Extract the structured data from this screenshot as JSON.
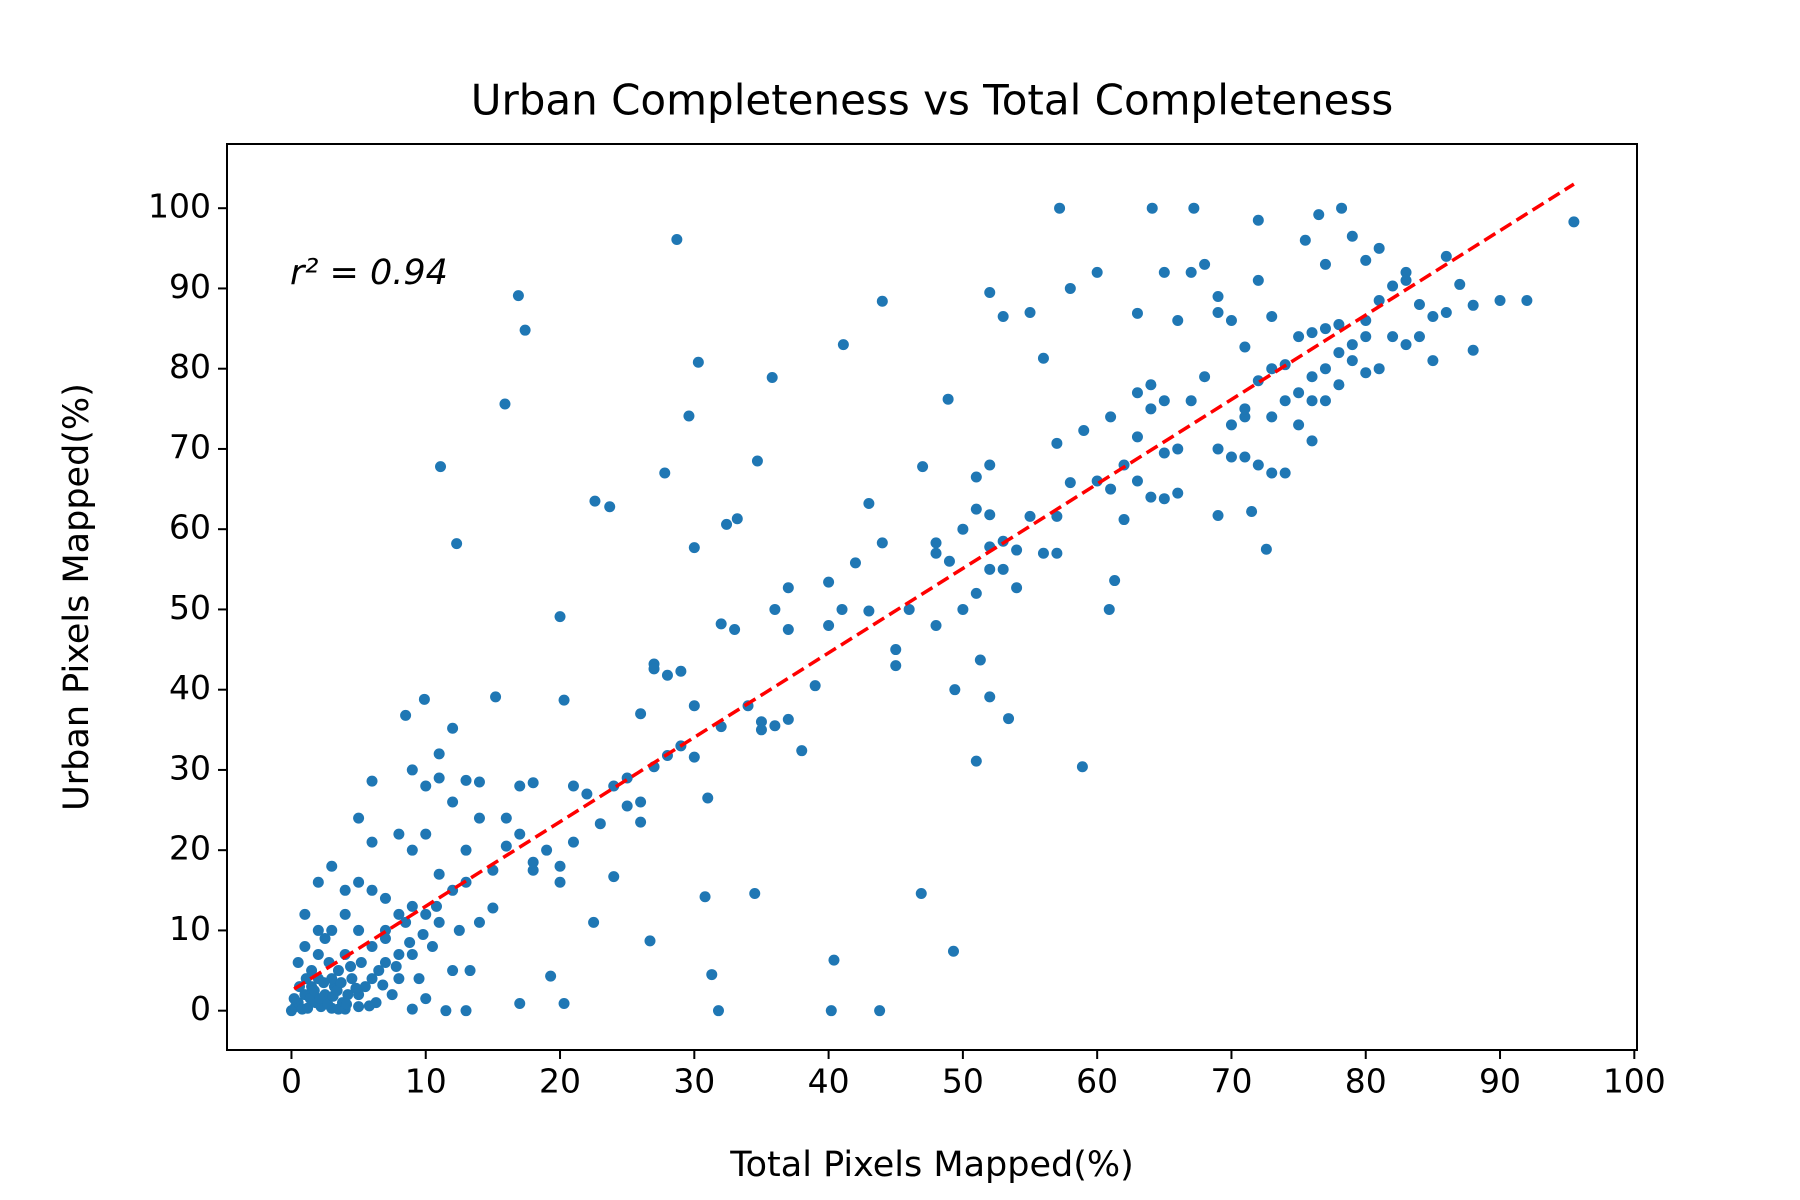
{
  "chart_data": {
    "type": "scatter",
    "title": "Urban Completeness vs Total Completeness",
    "x_label": "Total Pixels Mapped(%)",
    "y_label": "Urban Pixels Mapped(%)",
    "annotation": "r² = 0.94",
    "color": "#1f77b4",
    "xlim": [
      -4.8,
      100.2
    ],
    "ylim": [
      -4.9,
      108
    ],
    "xticks": [
      0,
      10,
      20,
      30,
      40,
      50,
      60,
      70,
      80,
      90,
      100
    ],
    "yticks": [
      0,
      10,
      20,
      30,
      40,
      50,
      60,
      70,
      80,
      90,
      100
    ],
    "trend_line": {
      "color": "#ff0000",
      "x": [
        0.2,
        95.5
      ],
      "values": [
        2.7,
        103.0
      ]
    },
    "x": [
      67.2,
      64.1,
      57.2,
      78.2,
      28.7,
      95.5,
      16.9,
      17.4,
      44,
      15.9,
      11.1,
      12.3,
      30.3,
      29.6,
      35.8,
      41.1,
      48.9,
      27.8,
      34.7,
      22.6,
      23.7,
      30,
      32.4,
      33.2,
      20,
      58.9,
      49.3,
      46.9,
      40.4,
      40.2,
      43.8,
      31.8,
      31.3,
      26.7,
      22.5,
      20.3,
      19.3,
      17,
      34.5,
      30.8,
      72.6,
      60.9,
      61.3,
      53.4,
      52,
      51.3,
      51,
      49.4,
      20.3,
      15.2,
      9.9,
      8.5,
      75.5,
      76.5,
      79,
      81,
      72,
      80,
      77,
      72,
      83,
      86,
      87,
      90,
      92,
      88,
      88,
      85,
      83,
      82,
      80,
      79,
      78,
      77,
      76,
      75,
      74,
      73,
      71,
      70,
      69,
      70,
      71,
      72,
      73,
      74,
      69,
      71.5,
      65,
      68,
      67,
      63,
      66,
      69,
      70,
      69,
      71,
      72,
      73,
      76,
      77,
      78,
      80,
      81,
      82,
      83,
      84,
      85,
      86,
      84,
      81,
      80,
      79,
      78,
      76,
      75,
      76,
      77,
      74,
      75,
      73,
      71,
      68,
      67,
      66,
      65,
      66,
      65,
      64,
      63,
      61,
      62,
      60,
      62,
      63,
      64,
      65,
      64,
      63,
      61,
      60,
      58,
      55,
      53,
      52,
      56,
      57,
      59,
      58,
      57,
      55,
      57,
      56,
      54,
      52,
      53,
      51,
      52,
      51,
      52,
      50,
      49,
      48,
      48,
      48,
      50,
      51,
      52,
      53,
      54,
      47,
      46,
      45,
      45,
      44,
      43,
      43,
      42,
      41,
      40,
      40,
      39,
      38,
      37,
      37,
      36,
      36,
      37,
      35,
      35,
      34,
      33,
      32,
      32,
      31,
      30,
      30,
      29,
      28,
      28,
      29,
      27,
      27,
      26,
      27,
      25,
      26,
      26,
      25,
      24,
      24,
      23,
      22,
      21,
      21,
      20,
      20,
      19,
      18,
      18,
      17,
      18,
      17,
      16,
      16,
      15,
      15,
      14,
      14,
      13,
      13,
      12,
      12,
      11,
      11,
      10,
      10,
      10,
      9,
      9,
      8,
      8,
      7,
      7,
      6,
      6,
      6,
      5,
      5,
      5,
      4,
      4,
      3,
      3,
      2,
      2,
      1,
      0,
      0.3,
      0.5,
      0.8,
      1,
      1.2,
      1.5,
      1.8,
      2,
      2.2,
      2.5,
      2.8,
      3,
      3.2,
      3.5,
      3.8,
      4,
      4.2,
      4.5,
      5,
      5.2,
      5.5,
      6,
      6.3,
      6.5,
      7,
      7.5,
      8,
      8.5,
      9,
      9.5,
      10,
      10.5,
      11,
      11.5,
      12,
      12.5,
      13,
      13.3,
      14,
      0.5,
      1,
      1.5,
      2,
      2.5,
      3,
      3.5,
      4,
      5,
      6,
      7,
      8,
      9,
      9,
      11,
      12,
      13,
      0.2,
      0.6,
      1.1,
      1.4,
      1.7,
      2.1,
      2.4,
      2.7,
      3.1,
      3.4,
      3.7,
      4.1,
      4.4,
      4.8,
      5.8,
      6.8,
      7.8,
      8.8,
      9.8,
      10.8
    ],
    "values": [
      100,
      100,
      100,
      100,
      96.1,
      98.3,
      89.1,
      84.8,
      88.4,
      75.6,
      67.8,
      58.2,
      80.8,
      74.1,
      78.9,
      83,
      76.2,
      67,
      68.5,
      63.5,
      62.8,
      57.7,
      60.6,
      61.3,
      49.1,
      30.4,
      7.4,
      14.6,
      6.3,
      0,
      0,
      0,
      4.5,
      8.7,
      11,
      0.9,
      4.3,
      0.9,
      14.6,
      14.2,
      57.5,
      50,
      53.6,
      36.4,
      39.1,
      43.7,
      31.1,
      40,
      38.7,
      39.1,
      38.8,
      36.8,
      96,
      99.2,
      96.5,
      95,
      98.5,
      93.5,
      93,
      91,
      92,
      94,
      90.5,
      88.5,
      88.5,
      87.9,
      82.3,
      81,
      83,
      84,
      84,
      83,
      82,
      80,
      79,
      77,
      76,
      74,
      74,
      73,
      70,
      69,
      69,
      68,
      67,
      67,
      61.7,
      62.2,
      92,
      93,
      92,
      86.9,
      86,
      89,
      86,
      87,
      82.7,
      78.5,
      86.5,
      84.5,
      85,
      85.5,
      86,
      88.5,
      90.3,
      91,
      88,
      86.5,
      87,
      84,
      80,
      79.5,
      81,
      78,
      76,
      73,
      71,
      76,
      80.5,
      84,
      80,
      75,
      79,
      76,
      70,
      69.5,
      64.5,
      63.8,
      64,
      66,
      65,
      61.2,
      66,
      68,
      71.5,
      78,
      76,
      75,
      77,
      74,
      92,
      90,
      87,
      86.5,
      89.5,
      81.3,
      70.7,
      72.3,
      65.8,
      61.6,
      61.6,
      57,
      57,
      57.4,
      57.8,
      58.5,
      66.5,
      68,
      62.5,
      61.8,
      60,
      56,
      57,
      58.3,
      48,
      50,
      52,
      55,
      55,
      52.7,
      67.8,
      50,
      45,
      43,
      58.3,
      63.2,
      49.8,
      55.8,
      50,
      53.4,
      48,
      40.5,
      32.4,
      47.5,
      52.7,
      50,
      35.5,
      36.3,
      35,
      36,
      38,
      47.5,
      48.2,
      35.4,
      26.5,
      31.6,
      38,
      33,
      31.8,
      41.8,
      42.3,
      43.2,
      42.6,
      37,
      30.4,
      29,
      26,
      23.5,
      25.5,
      28,
      16.7,
      23.3,
      27,
      28,
      21,
      18,
      16,
      20,
      18.5,
      17.5,
      28,
      28.4,
      22,
      24,
      20.5,
      17.5,
      12.8,
      24,
      28.5,
      28.7,
      20,
      26,
      35.2,
      32,
      29,
      28,
      22,
      12,
      30,
      20,
      22,
      12,
      14,
      10,
      28.6,
      21,
      15,
      24,
      16,
      10,
      15,
      12,
      18,
      10,
      16,
      10,
      12,
      0,
      0.5,
      1,
      0.2,
      2,
      0.3,
      3,
      1,
      4,
      0.5,
      2,
      6,
      0.3,
      3,
      5,
      1,
      7,
      2,
      4,
      0.5,
      6,
      3,
      8,
      1,
      5,
      9,
      2,
      7,
      11,
      0.2,
      4,
      1.5,
      8,
      11,
      0,
      5,
      10,
      0,
      5,
      11,
      6,
      8,
      5,
      7,
      9,
      4,
      0.2,
      0.2,
      2,
      4,
      6,
      4,
      7,
      13,
      17,
      15,
      16,
      1.5,
      3,
      4,
      1.5,
      2.5,
      1.5,
      3.5,
      0.8,
      1.8,
      2.5,
      3.5,
      0.8,
      5.5,
      2.8,
      0.6,
      3.2,
      5.5,
      8.5,
      9.5,
      13
    ]
  }
}
